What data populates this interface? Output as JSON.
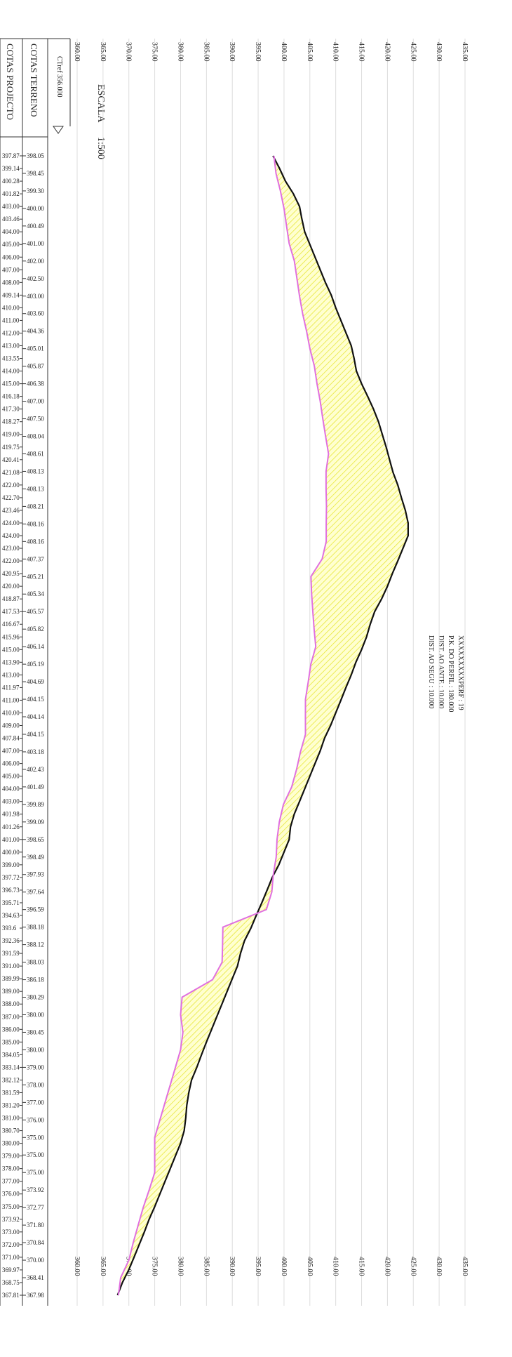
{
  "header": {
    "col_project": "COTAS PROJECTO",
    "col_terrain": "COTAS TERRENO",
    "ctref": "CTref 356.000",
    "scale_label": "ESCALA",
    "scale_value": "1:500"
  },
  "info": [
    "XXXXXXXXXPERF : 19",
    "P.K. DO PERFIL : 180.000",
    "DIST. AO ANTE : 10.000",
    "DIST. AO SEGU : 10.000"
  ],
  "axis": {
    "lim": [
      360,
      435
    ],
    "ticks": [
      {
        "value": 360,
        "label": "360.00"
      },
      {
        "value": 365,
        "label": "365.00"
      },
      {
        "value": 370,
        "label": "370.00"
      },
      {
        "value": 375,
        "label": "375.00"
      },
      {
        "value": 380,
        "label": "380.00"
      },
      {
        "value": 385,
        "label": "385.00"
      },
      {
        "value": 390,
        "label": "390.00"
      },
      {
        "value": 395,
        "label": "395.00"
      },
      {
        "value": 400,
        "label": "400.00"
      },
      {
        "value": 405,
        "label": "405.00"
      },
      {
        "value": 410,
        "label": "410.00"
      },
      {
        "value": 415,
        "label": "415.00"
      },
      {
        "value": 420,
        "label": "420.00"
      },
      {
        "value": 425,
        "label": "425.00"
      },
      {
        "value": 430,
        "label": "430.00"
      },
      {
        "value": 435,
        "label": "435.00"
      }
    ]
  },
  "terrain_levels": [
    "397.87",
    "399.14",
    "400.28",
    "401.82",
    "403.00",
    "403.46",
    "404.00",
    "405.00",
    "406.00",
    "407.00",
    "408.00",
    "409.14",
    "410.00",
    "411.00",
    "412.00",
    "413.00",
    "413.55",
    "414.00",
    "415.00",
    "416.18",
    "417.30",
    "418.27",
    "419.00",
    "419.75",
    "420.41",
    "421.08",
    "422.00",
    "422.70",
    "423.46",
    "424.00",
    "424.00",
    "423.00",
    "422.00",
    "420.95",
    "420.00",
    "418.87",
    "417.53",
    "416.67",
    "415.96",
    "415.00",
    "413.90",
    "413.00",
    "411.97",
    "411.00",
    "410.00",
    "409.00",
    "407.84",
    "407.00",
    "406.00",
    "405.00",
    "404.00",
    "403.00",
    "401.98",
    "401.26",
    "401.00",
    "400.00",
    "399.00",
    "397.72",
    "396.73",
    "395.71",
    "394.63",
    "393.6",
    "392.36",
    "391.59",
    "391.00",
    "389.99",
    "389.00",
    "388.00",
    "387.00",
    "386.00",
    "385.00",
    "384.05",
    "383.14",
    "382.12",
    "381.59",
    "381.20",
    "381.00",
    "380.70",
    "380.00",
    "379.00",
    "378.00",
    "377.00",
    "376.00",
    "375.00",
    "373.92",
    "373.00",
    "372.00",
    "371.00",
    "369.97",
    "368.75",
    "367.81"
  ],
  "project_levels": [
    "398.05",
    "398.45",
    "399.30",
    "400.00",
    "400.49",
    "401.00",
    "402.00",
    "402.50",
    "403.00",
    "403.60",
    "404.36",
    "405.01",
    "405.87",
    "406.38",
    "407.00",
    "407.50",
    "408.04",
    "408.61",
    "408.13",
    "408.13",
    "408.21",
    "408.16",
    "408.16",
    "407.37",
    "405.21",
    "405.34",
    "405.57",
    "405.82",
    "406.14",
    "405.19",
    "404.69",
    "404.15",
    "404.14",
    "404.15",
    "403.18",
    "402.43",
    "401.49",
    "399.89",
    "399.09",
    "398.65",
    "398.49",
    "397.93",
    "397.64",
    "396.59",
    "388.18",
    "388.12",
    "388.03",
    "386.18",
    "380.29",
    "380.00",
    "380.45",
    "380.00",
    "379.00",
    "378.00",
    "377.00",
    "376.00",
    "375.00",
    "375.00",
    "375.00",
    "373.92",
    "372.77",
    "371.80",
    "370.84",
    "370.00",
    "368.41",
    "367.98"
  ]
}
